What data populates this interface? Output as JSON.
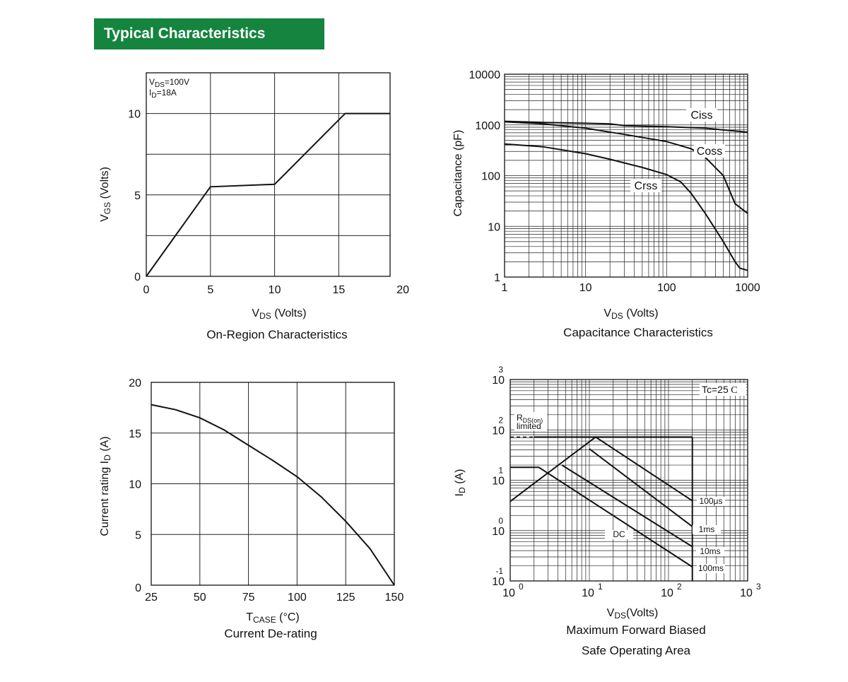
{
  "header": {
    "title": "Typical Characteristics"
  },
  "chart_data": [
    {
      "type": "line",
      "title": "On-Region Characteristics",
      "xlabel_main": "V",
      "xlabel_sub": "DS",
      "xlabel_unit": " (Volts)",
      "ylabel_main": "V",
      "ylabel_sub": "GS",
      "ylabel_unit": " (Volts)",
      "xlim": [
        0,
        19
      ],
      "ylim": [
        0,
        12.5
      ],
      "x_ticks": [
        "0",
        "5",
        "10",
        "15",
        "20"
      ],
      "y_ticks": [
        "0",
        "5",
        "10"
      ],
      "grid": true,
      "conditions": [
        {
          "main": "V",
          "sub": "DS",
          "rest": "=100V"
        },
        {
          "main": "I",
          "sub": "D",
          "rest": "=18A"
        }
      ],
      "series": [
        {
          "x": [
            0,
            5,
            10,
            15.5,
            19
          ],
          "y": [
            0,
            5.5,
            5.65,
            10,
            10
          ]
        }
      ]
    },
    {
      "type": "line",
      "title": "Capacitance Characteristics",
      "xlabel_main": "V",
      "xlabel_sub": "DS",
      "xlabel_unit": " (Volts)",
      "ylabel": "Capacitance (pF)",
      "x_scale": "log",
      "y_scale": "log",
      "xlim": [
        1,
        1000
      ],
      "ylim": [
        1,
        10000
      ],
      "x_ticks": [
        "1",
        "10",
        "100",
        "1000"
      ],
      "y_ticks": [
        "1",
        "10",
        "100",
        "1000",
        "10000"
      ],
      "grid": true,
      "series": [
        {
          "name": "Ciss",
          "x": [
            1,
            3,
            10,
            20,
            30,
            100,
            300,
            1000
          ],
          "y": [
            1180,
            1120,
            1080,
            1050,
            970,
            920,
            860,
            720
          ]
        },
        {
          "name": "Coss",
          "x": [
            1,
            3,
            10,
            30,
            100,
            200,
            300,
            500,
            700,
            1000
          ],
          "y": [
            1150,
            1050,
            860,
            650,
            470,
            340,
            230,
            100,
            28,
            18
          ]
        },
        {
          "name": "Crss",
          "x": [
            1,
            3,
            10,
            20,
            50,
            100,
            150,
            200,
            300,
            500,
            700,
            800,
            1000
          ],
          "y": [
            420,
            370,
            270,
            210,
            145,
            105,
            75,
            45,
            18,
            5,
            2,
            1.5,
            1.35
          ]
        }
      ]
    },
    {
      "type": "line",
      "title": "Current De-rating",
      "xlabel_main": "T",
      "xlabel_sub": "CASE",
      "xlabel_unit": " (°C)",
      "ylabel": "Current rating I",
      "ylabel_sub": "D",
      "ylabel_unit": " (A)",
      "xlim": [
        25,
        150
      ],
      "ylim": [
        0,
        20
      ],
      "x_ticks": [
        "25",
        "50",
        "75",
        "100",
        "125",
        "150"
      ],
      "y_ticks": [
        "0",
        "5",
        "10",
        "15",
        "20"
      ],
      "grid": true,
      "series": [
        {
          "x": [
            25,
            37.5,
            50,
            62.5,
            75,
            87.5,
            100,
            112.5,
            125,
            137.5,
            150
          ],
          "y": [
            17.8,
            17.3,
            16.5,
            15.3,
            13.8,
            12.3,
            10.7,
            8.7,
            6.3,
            3.6,
            0
          ]
        }
      ]
    },
    {
      "type": "line",
      "title_line1": "Maximum Forward Biased",
      "title_line2": "Safe Operating Area",
      "xlabel_main": "V",
      "xlabel_sub": "DS",
      "xlabel_unit": "(Volts)",
      "ylabel_main": "I",
      "ylabel_sub": "D",
      "ylabel_unit": " (A)",
      "x_scale": "log",
      "y_scale": "log",
      "xlim": [
        1,
        1000
      ],
      "ylim": [
        0.1,
        1000
      ],
      "x_tick_exponents": [
        "0",
        "1",
        "2",
        "3"
      ],
      "y_tick_exponents": [
        "-1",
        "0",
        "1",
        "2",
        "3"
      ],
      "tick_base": "10",
      "grid": true,
      "annotation_tc": "Tc=25",
      "annotation_tc_unit": "C",
      "rds_label_main": "R",
      "rds_label_sub": "DS(on)",
      "rds_label_line2": "limited",
      "max_current_line": 72,
      "voltage_limit": 200,
      "series": [
        {
          "name": "100μs",
          "x": [
            1,
            12,
            200
          ],
          "y": [
            3.8,
            72,
            3.9
          ]
        },
        {
          "name": "1ms",
          "x": [
            10,
            200
          ],
          "y": [
            42,
            1.2
          ]
        },
        {
          "name": "10ms",
          "x": [
            4.5,
            200
          ],
          "y": [
            20,
            0.48
          ]
        },
        {
          "name": "100ms",
          "x": [
            1,
            2.3,
            200
          ],
          "y": [
            18,
            18,
            0.19
          ]
        },
        {
          "name": "DC",
          "x": [],
          "y": []
        }
      ]
    }
  ]
}
